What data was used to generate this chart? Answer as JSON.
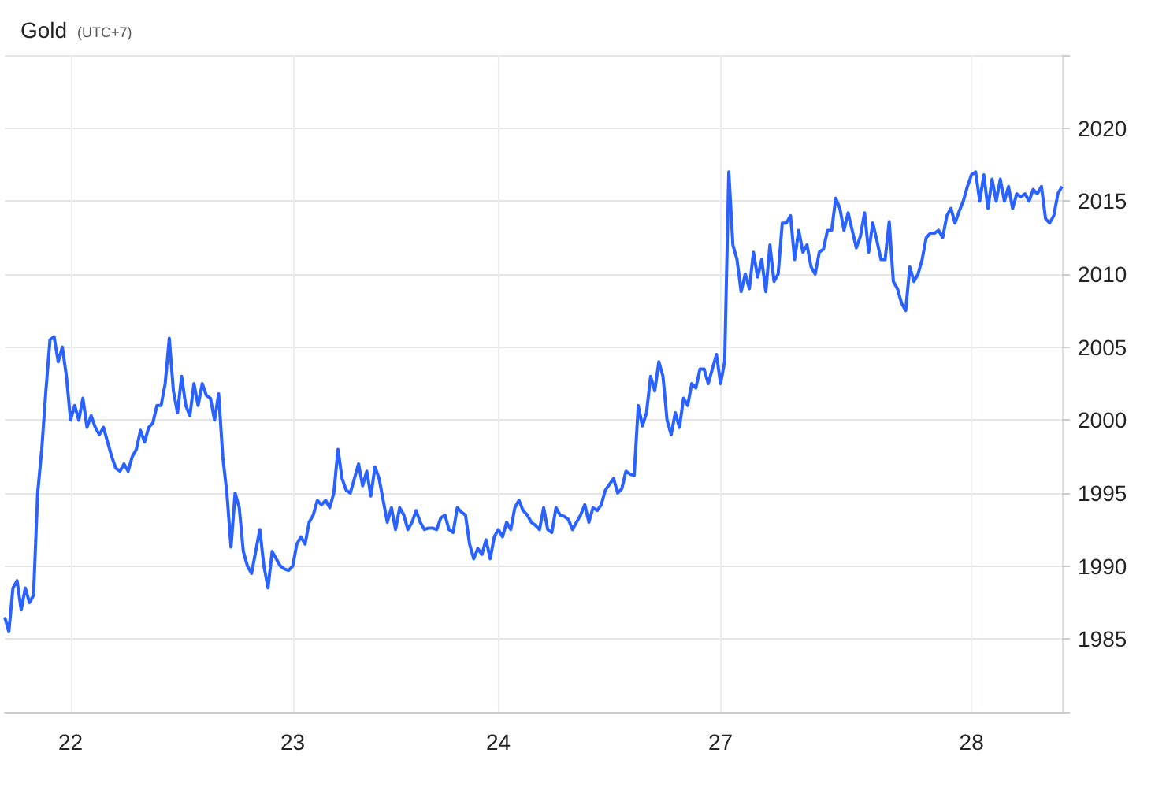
{
  "chart_data": {
    "type": "line",
    "title": "Gold",
    "subtitle": "(UTC+7)",
    "categories": [
      null,
      null,
      null,
      null,
      null,
      null,
      null,
      null,
      null,
      null,
      null,
      null,
      null,
      null,
      null,
      null,
      "22",
      null,
      null,
      null,
      null,
      null,
      null,
      null,
      null,
      null,
      null,
      null,
      null,
      null,
      null,
      null,
      null,
      null,
      null,
      null,
      null,
      null,
      null,
      null,
      null,
      null,
      null,
      null,
      null,
      null,
      null,
      null,
      null,
      null,
      null,
      null,
      null,
      null,
      null,
      null,
      null,
      null,
      null,
      null,
      null,
      null,
      null,
      null,
      null,
      null,
      null,
      null,
      null,
      null,
      "23",
      null,
      null,
      null,
      null,
      null,
      null,
      null,
      null,
      null,
      null,
      null,
      null,
      null,
      null,
      null,
      null,
      null,
      null,
      null,
      null,
      null,
      null,
      null,
      null,
      null,
      null,
      null,
      null,
      null,
      null,
      null,
      null,
      null,
      null,
      null,
      null,
      null,
      null,
      null,
      null,
      null,
      null,
      null,
      null,
      null,
      null,
      null,
      null,
      null,
      "24",
      null,
      null,
      null,
      null,
      null,
      null,
      null,
      null,
      null,
      null,
      null,
      null,
      null,
      null,
      null,
      null,
      null,
      null,
      null,
      null,
      null,
      null,
      null,
      null,
      null,
      null,
      null,
      null,
      null,
      null,
      null,
      null,
      null,
      null,
      null,
      null,
      null,
      null,
      null,
      null,
      null,
      null,
      null,
      null,
      null,
      null,
      null,
      null,
      null,
      null,
      null,
      null,
      null,
      "27",
      null,
      null,
      null,
      null,
      null,
      null,
      null,
      null,
      null,
      null,
      null,
      null,
      null,
      null,
      null,
      null,
      null,
      null,
      null,
      null,
      null,
      null,
      null,
      null,
      null,
      null,
      null,
      null,
      null,
      null,
      null,
      null,
      null,
      null,
      null,
      null,
      null,
      null,
      null,
      null,
      null,
      null,
      null,
      null,
      null,
      null,
      null,
      null,
      null,
      null,
      null,
      null,
      null,
      null,
      null,
      null,
      null,
      null,
      null,
      null,
      "28",
      null,
      null,
      null,
      null,
      null,
      null,
      null,
      null,
      null,
      null,
      null,
      null,
      null,
      null,
      null,
      null,
      null,
      null,
      null,
      null,
      null,
      null
    ],
    "ylim": [
      1980,
      2025
    ],
    "yticks": [
      {
        "value": 1980,
        "label": null
      },
      1985,
      1990,
      1995,
      2000,
      2005,
      2010,
      2015,
      2020,
      {
        "value": 2025,
        "label": null
      }
    ],
    "grid": true,
    "marker": "none",
    "line_style": "solid",
    "tick_labels": "xy",
    "series": [
      {
        "color": "#2962ff",
        "values": [
          1986.5,
          1985.5,
          1988.5,
          1989,
          1987,
          1988.5,
          1987.5,
          1988,
          1995,
          1998,
          2002,
          2005.5,
          2005.7,
          2004,
          2005,
          2003,
          2000,
          2001,
          2000,
          2001.5,
          1999.5,
          2000.3,
          1999.5,
          1999,
          1999.5,
          1998.5,
          1997.5,
          1996.7,
          1996.5,
          1997,
          1996.5,
          1997.5,
          1998,
          1999.3,
          1998.5,
          1999.5,
          1999.8,
          2001,
          2001,
          2002.5,
          2005.6,
          2002,
          2000.5,
          2003,
          2001,
          2000.3,
          2002.5,
          2001,
          2002.5,
          2001.7,
          2001.5,
          2000,
          2001.8,
          1997.5,
          1995,
          1991.3,
          1995,
          1994,
          1991,
          1990,
          1989.5,
          1991,
          1992.5,
          1990,
          1988.5,
          1991,
          1990.5,
          1990,
          1989.8,
          1989.7,
          1990,
          1991.5,
          1992,
          1991.5,
          1993,
          1993.5,
          1994.5,
          1994.2,
          1994.5,
          1994,
          1995,
          1998,
          1996,
          1995.2,
          1995,
          1996,
          1997,
          1995.5,
          1996.5,
          1994.8,
          1996.8,
          1996,
          1994.5,
          1993,
          1994,
          1992.5,
          1994,
          1993.5,
          1992.5,
          1993,
          1993.8,
          1993,
          1992.5,
          1992.6,
          1992.6,
          1992.5,
          1993.3,
          1993.5,
          1992.5,
          1992.3,
          1994,
          1993.7,
          1993.5,
          1991.5,
          1990.5,
          1991.2,
          1990.8,
          1991.8,
          1990.5,
          1992,
          1992.5,
          1992,
          1993,
          1992.5,
          1994,
          1994.5,
          1993.8,
          1993.5,
          1993,
          1992.8,
          1992.5,
          1994,
          1992.5,
          1992.3,
          1994,
          1993.5,
          1993.4,
          1993.2,
          1992.5,
          1993,
          1993.5,
          1994.2,
          1993,
          1994,
          1993.8,
          1994.2,
          1995.2,
          1995.6,
          1996,
          1995,
          1995.3,
          1996.5,
          1996.3,
          1996.2,
          2001,
          1999.6,
          2000.5,
          2003,
          2002,
          2004,
          2003,
          2000,
          1999,
          2000.5,
          1999.5,
          2001.5,
          2001,
          2002.5,
          2002.2,
          2003.5,
          2003.5,
          2002.5,
          2003.5,
          2004.5,
          2002.5,
          2004,
          2017,
          2012,
          2011,
          2008.8,
          2010,
          2009,
          2011.5,
          2009.8,
          2011,
          2008.8,
          2012,
          2009.5,
          2010,
          2013.5,
          2013.5,
          2014,
          2011,
          2013,
          2011.5,
          2012,
          2010.5,
          2010,
          2011.5,
          2011.7,
          2013,
          2013,
          2015.2,
          2014.5,
          2013,
          2014.2,
          2013,
          2011.8,
          2012.6,
          2014.2,
          2011.5,
          2013.5,
          2012.3,
          2011,
          2011,
          2013.6,
          2009.5,
          2009,
          2008,
          2007.5,
          2010.5,
          2009.5,
          2010,
          2011,
          2012.5,
          2012.8,
          2012.8,
          2013,
          2012.5,
          2014,
          2014.5,
          2013.5,
          2014.3,
          2015,
          2016,
          2016.8,
          2017,
          2015,
          2016.8,
          2014.5,
          2016.5,
          2015,
          2016.5,
          2015,
          2016,
          2014.5,
          2015.5,
          2015.3,
          2015.5,
          2015,
          2015.8,
          2015.5,
          2016,
          2013.8,
          2013.5,
          2014,
          2015.5,
          2016
        ]
      }
    ]
  }
}
